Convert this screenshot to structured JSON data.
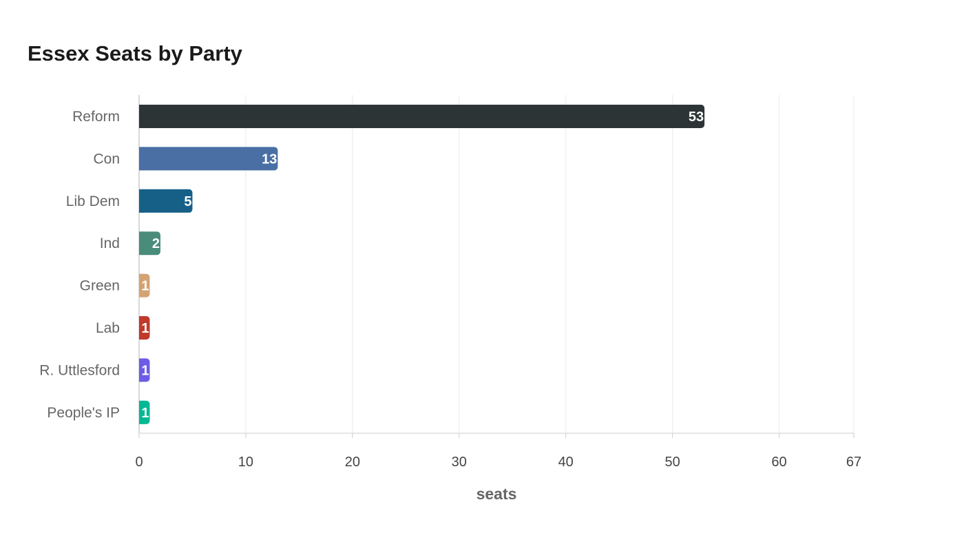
{
  "chart_data": {
    "type": "bar",
    "orientation": "horizontal",
    "title": "Essex Seats by Party",
    "xlabel": "seats",
    "ylabel": "",
    "categories": [
      "Reform",
      "Con",
      "Lib Dem",
      "Ind",
      "Green",
      "Lab",
      "R. Uttlesford",
      "People's IP"
    ],
    "values": [
      53,
      13,
      5,
      2,
      1,
      1,
      1,
      1
    ],
    "colors": [
      "#2d3436",
      "#4a6fa5",
      "#166088",
      "#4a8c7a",
      "#d4a373",
      "#c0392b",
      "#6c5ce7",
      "#00b894"
    ],
    "xlim": [
      0,
      67
    ],
    "xticks": [
      0,
      10,
      20,
      30,
      40,
      50,
      60,
      67
    ],
    "grid": true,
    "legend": "none"
  }
}
